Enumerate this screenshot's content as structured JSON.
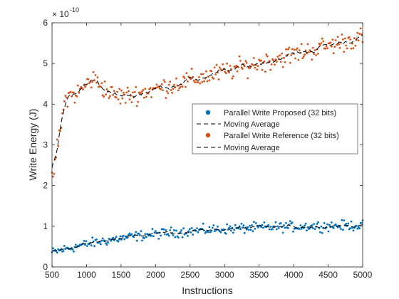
{
  "chart_data": {
    "type": "scatter",
    "title": "",
    "xlabel": "Instructions",
    "ylabel": "Write Energy (J)",
    "exponent_label": "× 10",
    "exponent_power": "-10",
    "xlim": [
      500,
      5000
    ],
    "ylim": [
      0,
      6
    ],
    "xticks": [
      "500",
      "1000",
      "1500",
      "2000",
      "2500",
      "3000",
      "3500",
      "4000",
      "4500",
      "5000"
    ],
    "yticks": [
      "0",
      "1",
      "2",
      "3",
      "4",
      "5",
      "6"
    ],
    "grid": false,
    "legend_position": "right",
    "series": [
      {
        "name": "Parallel Write Proposed (32 bits)",
        "color": "#0072BD",
        "marker": "dot",
        "x_start": 500,
        "x_end": 5000,
        "base_start": 0.35,
        "base_end": 1.05,
        "rise": 0.6,
        "noise": 0.18
      },
      {
        "name": "Moving Average",
        "color": "#000000",
        "style": "dashed",
        "of_series": 0
      },
      {
        "name": "Parallel Write Reference (32 bits)",
        "color": "#D95319",
        "marker": "dot",
        "x_start": 500,
        "x_end": 5000,
        "base_start": 2.1,
        "base_end": 5.6,
        "rise": 0.12,
        "noise": 0.35
      },
      {
        "name": "Moving Average",
        "color": "#000000",
        "style": "dashed",
        "of_series": 2
      }
    ]
  }
}
